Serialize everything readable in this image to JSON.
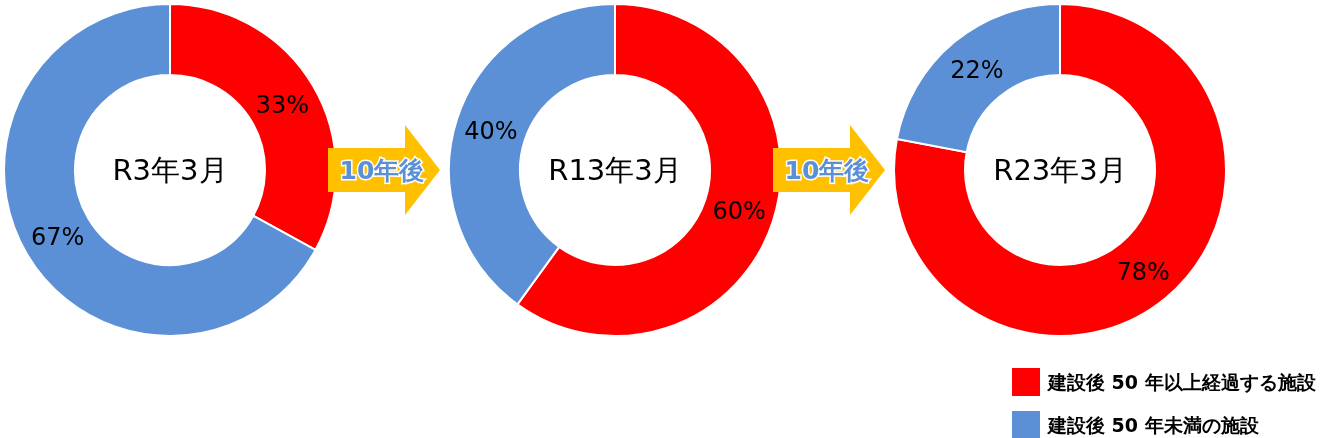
{
  "chart_data": [
    {
      "type": "donut",
      "title": "R3年3月",
      "values": [
        33,
        67
      ],
      "colors": [
        "#ff0000",
        "#5b8fd6"
      ],
      "value_labels": [
        "33%",
        "67%"
      ]
    },
    {
      "type": "donut",
      "title": "R13年3月",
      "values": [
        60,
        40
      ],
      "colors": [
        "#ff0000",
        "#5b8fd6"
      ],
      "value_labels": [
        "60%",
        "40%"
      ],
      "annotations": [
        "10年後"
      ]
    },
    {
      "type": "donut",
      "title": "R23年3月",
      "categories": [
        "建設後 50 年以上経過する施設",
        "建設後 50 年未満の施設"
      ],
      "values": [
        78,
        22
      ],
      "colors": [
        "#ff0000",
        "#5b8fd6"
      ],
      "value_labels": [
        "78%",
        "22%"
      ],
      "annotations": [
        "10年後"
      ],
      "legend": "bottom right"
    }
  ]
}
